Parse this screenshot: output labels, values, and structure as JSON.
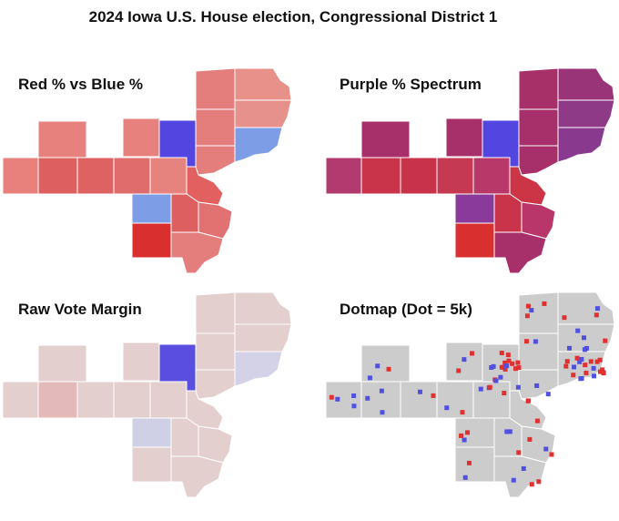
{
  "title": "2024 Iowa U.S. House election, Congressional District 1",
  "panels": [
    {
      "title": "Red % vs Blue %"
    },
    {
      "title": "Purple % Spectrum"
    },
    {
      "title": "Raw Vote Margin"
    },
    {
      "title": "Dotmap (Dot = 5k)"
    }
  ]
}
